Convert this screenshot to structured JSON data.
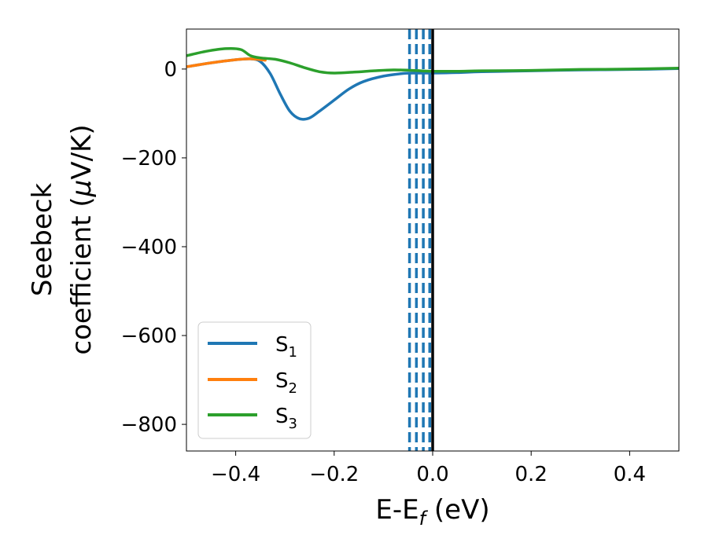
{
  "chart_data": {
    "type": "line",
    "xlabel": "E-E",
    "xlabel_sub": "f",
    "xlabel_unit": " (eV)",
    "ylabel_line1": "Seebeck",
    "ylabel_line2_prefix": "coefficient  (",
    "ylabel_mu": "μ",
    "ylabel_line2_suffix": "V/K)",
    "xlim": [
      -0.5,
      0.5
    ],
    "ylim": [
      -860,
      90
    ],
    "x_ticks": [
      -0.4,
      -0.2,
      0.0,
      0.2,
      0.4
    ],
    "x_tick_labels": [
      "−0.4",
      "−0.2",
      "0.0",
      "0.2",
      "0.4"
    ],
    "y_ticks": [
      0,
      -200,
      -400,
      -600,
      -800
    ],
    "y_tick_labels": [
      "0",
      "−200",
      "−400",
      "−600",
      "−800"
    ],
    "grid": false,
    "legend_position": "lower-left",
    "series": [
      {
        "name": "S",
        "sub": "1",
        "color": "#1f77b4",
        "points": [
          [
            -0.5,
            5
          ],
          [
            -0.45,
            14
          ],
          [
            -0.4,
            21
          ],
          [
            -0.37,
            23
          ],
          [
            -0.35,
            17
          ],
          [
            -0.33,
            -10
          ],
          [
            -0.31,
            -55
          ],
          [
            -0.29,
            -95
          ],
          [
            -0.27,
            -112
          ],
          [
            -0.25,
            -110
          ],
          [
            -0.23,
            -95
          ],
          [
            -0.2,
            -70
          ],
          [
            -0.17,
            -45
          ],
          [
            -0.14,
            -28
          ],
          [
            -0.1,
            -16
          ],
          [
            -0.06,
            -10
          ],
          [
            -0.03,
            -9
          ],
          [
            0.0,
            -9
          ],
          [
            0.05,
            -8
          ],
          [
            0.1,
            -6
          ],
          [
            0.2,
            -4
          ],
          [
            0.3,
            -2
          ],
          [
            0.4,
            -1
          ],
          [
            0.5,
            1
          ]
        ]
      },
      {
        "name": "S",
        "sub": "2",
        "color": "#ff7f0e",
        "points": [
          [
            -0.5,
            5
          ],
          [
            -0.45,
            14
          ],
          [
            -0.4,
            21
          ],
          [
            -0.37,
            23
          ],
          [
            -0.34,
            20
          ]
        ]
      },
      {
        "name": "S",
        "sub": "3",
        "color": "#2ca02c",
        "points": [
          [
            -0.5,
            30
          ],
          [
            -0.46,
            40
          ],
          [
            -0.42,
            46
          ],
          [
            -0.39,
            44
          ],
          [
            -0.37,
            30
          ],
          [
            -0.35,
            25
          ],
          [
            -0.32,
            22
          ],
          [
            -0.29,
            14
          ],
          [
            -0.26,
            3
          ],
          [
            -0.23,
            -6
          ],
          [
            -0.2,
            -9
          ],
          [
            -0.16,
            -7
          ],
          [
            -0.12,
            -4
          ],
          [
            -0.08,
            -2
          ],
          [
            -0.04,
            -3
          ],
          [
            0.0,
            -5
          ],
          [
            0.05,
            -5
          ],
          [
            0.1,
            -4
          ],
          [
            0.2,
            -3
          ],
          [
            0.3,
            -1
          ],
          [
            0.4,
            0
          ],
          [
            0.5,
            2
          ]
        ]
      }
    ],
    "vlines_dashed": {
      "color": "#1f77b4",
      "x": [
        -0.047,
        -0.033,
        -0.019,
        -0.006
      ]
    },
    "vline_solid": {
      "color": "#000000",
      "x": 0.0
    }
  }
}
